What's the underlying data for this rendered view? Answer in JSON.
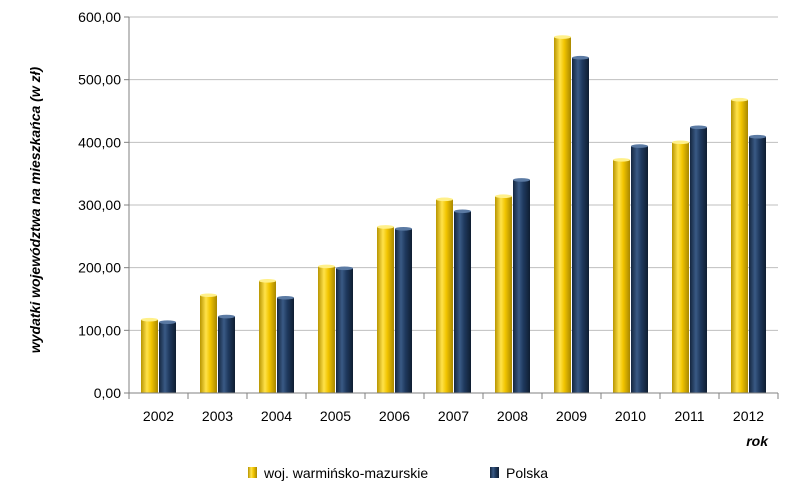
{
  "chart_data": {
    "type": "bar",
    "categories": [
      "2002",
      "2003",
      "2004",
      "2005",
      "2006",
      "2007",
      "2008",
      "2009",
      "2010",
      "2011",
      "2012"
    ],
    "series": [
      {
        "name": "woj. warmińsko-mazurskie",
        "color": "#F2C500",
        "values": [
          117,
          156,
          179,
          202,
          265,
          309,
          314,
          568,
          372,
          400,
          468
        ]
      },
      {
        "name": "Polska",
        "color": "#1F3A5F",
        "values": [
          113,
          122,
          152,
          199,
          262,
          290,
          340,
          535,
          394,
          424,
          409
        ]
      }
    ],
    "title": "",
    "xlabel": "rok",
    "ylabel": "wydatki województwa na mieszkańca (w zł)",
    "ylim": [
      0,
      600
    ],
    "yticks": [
      "0,00",
      "100,00",
      "200,00",
      "300,00",
      "400,00",
      "500,00",
      "600,00"
    ],
    "grid": true,
    "legend_position": "bottom"
  }
}
